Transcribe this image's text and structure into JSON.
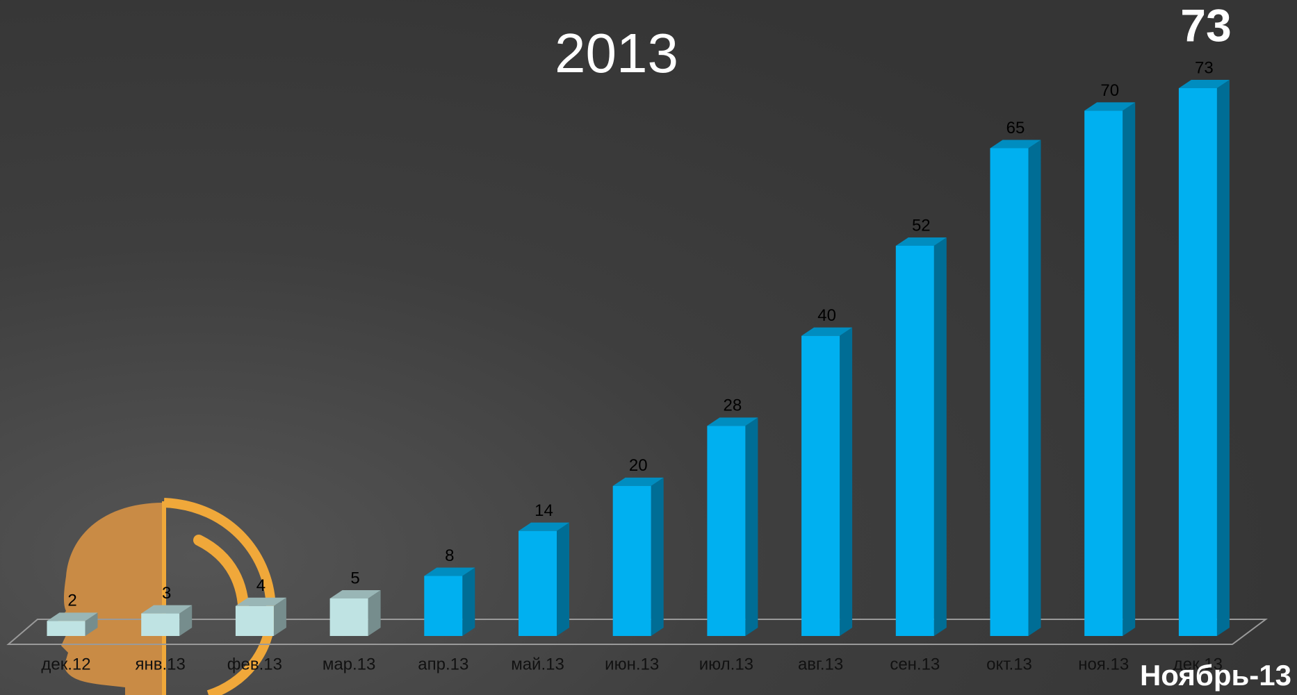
{
  "chart_data": {
    "type": "bar3d",
    "title": "2013",
    "categories": [
      "дек.12",
      "янв.13",
      "фев.13",
      "мар.13",
      "апр.13",
      "май.13",
      "июн.13",
      "июл.13",
      "авг.13",
      "сен.13",
      "окт.13",
      "ноя.13",
      "дек.13"
    ],
    "values": [
      2,
      3,
      4,
      5,
      8,
      14,
      20,
      28,
      40,
      52,
      65,
      70,
      73
    ],
    "colors": [
      "#bfe3e3",
      "#bfe3e3",
      "#bfe3e3",
      "#bfe3e3",
      "#00b0f0",
      "#00b0f0",
      "#00b0f0",
      "#00b0f0",
      "#00b0f0",
      "#00b0f0",
      "#00b0f0",
      "#00b0f0",
      "#00b0f0"
    ],
    "annotations": [
      "73",
      "Ноябрь-13"
    ]
  }
}
